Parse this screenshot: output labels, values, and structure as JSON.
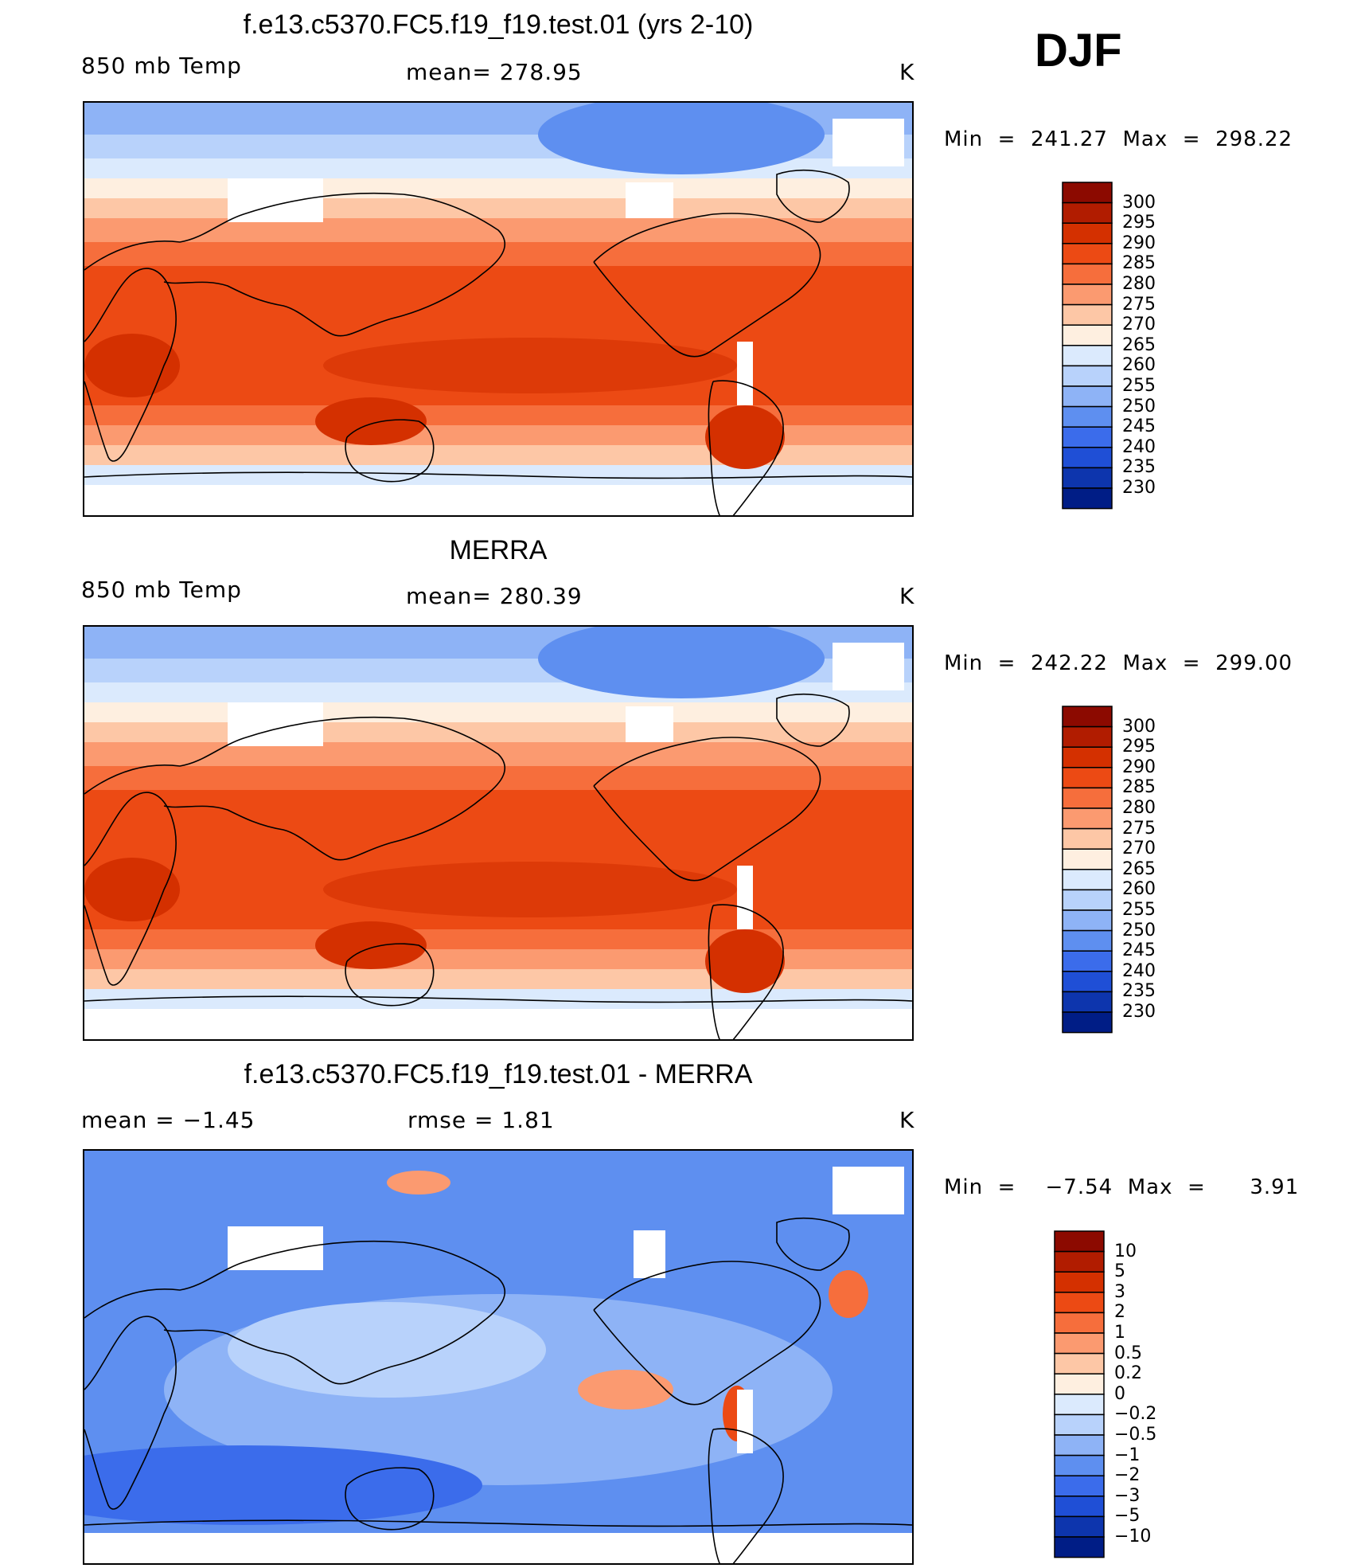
{
  "season": "DJF",
  "units": "K",
  "palettes": {
    "abs": [
      "#8c0a00",
      "#b11c00",
      "#d43000",
      "#ec4a14",
      "#f66e3c",
      "#fb9a70",
      "#fdc7a6",
      "#feefe0",
      "#dbeafd",
      "#b8d2fb",
      "#8eb3f6",
      "#5e8ff0",
      "#3b6ceb",
      "#1f4fd6",
      "#0d35ad",
      "#001d86"
    ],
    "diff": [
      "#8c0a00",
      "#b11c00",
      "#d43000",
      "#ec4a14",
      "#f66e3c",
      "#fb9a70",
      "#fdc7a6",
      "#feefe0",
      "#dbeafd",
      "#b8d2fb",
      "#8eb3f6",
      "#5e8ff0",
      "#3b6ceb",
      "#1f4fd6",
      "#0d35ad",
      "#001d86"
    ]
  },
  "panels": [
    {
      "id": "model",
      "title": "f.e13.c5370.FC5.f19_f19.test.01 (yrs 2-10)",
      "left_label": "850 mb Temp",
      "mid_label": "mean=  278.95",
      "units": "K",
      "minmax": "Min  =  241.27  Max  =  298.22",
      "colorbar_labels": [
        "300",
        "295",
        "290",
        "285",
        "280",
        "275",
        "270",
        "265",
        "260",
        "255",
        "250",
        "245",
        "240",
        "235",
        "230"
      ]
    },
    {
      "id": "obs",
      "title": "MERRA",
      "left_label": "850 mb Temp",
      "mid_label": "mean=  280.39",
      "units": "K",
      "minmax": "Min  =  242.22  Max  =  299.00",
      "colorbar_labels": [
        "300",
        "295",
        "290",
        "285",
        "280",
        "275",
        "270",
        "265",
        "260",
        "255",
        "250",
        "245",
        "240",
        "235",
        "230"
      ]
    },
    {
      "id": "diff",
      "title": "f.e13.c5370.FC5.f19_f19.test.01 - MERRA",
      "left_label": "mean =    −1.45",
      "mid_label": "rmse =     1.81",
      "units": "K",
      "minmax": "Min  =    −7.54  Max  =      3.91",
      "colorbar_labels": [
        "10",
        "5",
        "3",
        "2",
        "1",
        "0.5",
        "0.2",
        "0",
        "−0.2",
        "−0.5",
        "−1",
        "−2",
        "−3",
        "−5",
        "−10"
      ]
    }
  ],
  "chart_data": {
    "type": "heatmap",
    "description_fields": {
      "variable": "850 mb Temp",
      "season": "DJF",
      "units": "K"
    },
    "maps": [
      {
        "name": "f.e13.c5370.FC5.f19_f19.test.01 (yrs 2-10)",
        "mean": 278.95,
        "min": 241.27,
        "max": 298.22,
        "levels": [
          230,
          235,
          240,
          245,
          250,
          255,
          260,
          265,
          270,
          275,
          280,
          285,
          290,
          295,
          300
        ]
      },
      {
        "name": "MERRA",
        "mean": 280.39,
        "min": 242.22,
        "max": 299.0,
        "levels": [
          230,
          235,
          240,
          245,
          250,
          255,
          260,
          265,
          270,
          275,
          280,
          285,
          290,
          295,
          300
        ]
      },
      {
        "name": "f.e13.c5370.FC5.f19_f19.test.01 - MERRA",
        "mean": -1.45,
        "rmse": 1.81,
        "min": -7.54,
        "max": 3.91,
        "levels": [
          -10,
          -5,
          -3,
          -2,
          -1,
          -0.5,
          -0.2,
          0,
          0.2,
          0.5,
          1,
          2,
          3,
          5,
          10
        ]
      }
    ]
  }
}
